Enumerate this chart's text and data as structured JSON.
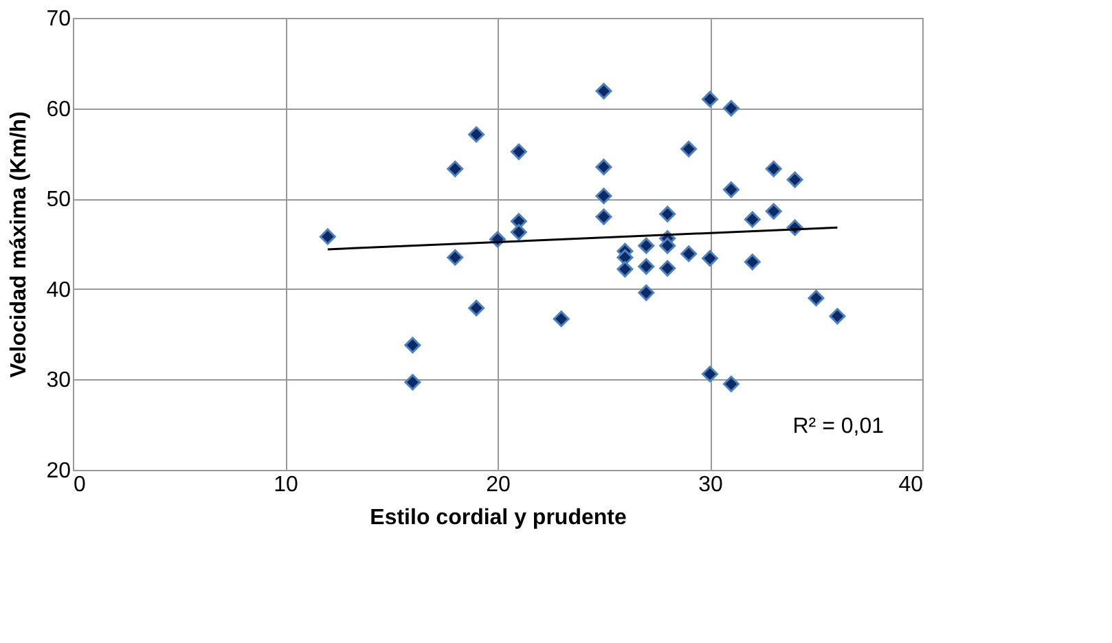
{
  "chart_data": {
    "type": "scatter",
    "xlabel": "Estilo cordial y prudente",
    "ylabel": "Velocidad máxima (Km/h)",
    "xlim": [
      0,
      40
    ],
    "xticks": [
      0,
      10,
      20,
      30,
      40
    ],
    "ylim": [
      20,
      70
    ],
    "yticks": [
      20,
      30,
      40,
      50,
      60,
      70
    ],
    "grid": true,
    "annotations": [
      "R² = 0,01"
    ],
    "series": [
      {
        "marker": "diamond",
        "color": "#0b2a66",
        "x": [
          12,
          16,
          16,
          18,
          18,
          19,
          19,
          20,
          21,
          21,
          21,
          23,
          25,
          25,
          25,
          25,
          26,
          26,
          26,
          27,
          27,
          27,
          28,
          28,
          28,
          28,
          29,
          29,
          30,
          30,
          30,
          31,
          31,
          31,
          32,
          32,
          33,
          33,
          34,
          34,
          35,
          36
        ],
        "values": [
          45.8,
          33.8,
          29.7,
          53.3,
          43.5,
          57.1,
          37.9,
          45.5,
          55.2,
          47.5,
          46.3,
          36.7,
          61.9,
          53.5,
          50.3,
          48,
          44.2,
          43.5,
          42.2,
          44.8,
          42.5,
          39.6,
          48.3,
          45.6,
          44.8,
          42.3,
          55.5,
          43.9,
          61,
          43.4,
          30.6,
          60,
          51,
          29.5,
          47.7,
          43,
          53.3,
          48.6,
          52.1,
          46.8,
          39,
          37
        ]
      },
      {
        "type": "line",
        "marker": "none",
        "color": "#000000",
        "x": [
          12,
          36
        ],
        "values": [
          44.4,
          46.8
        ]
      }
    ]
  }
}
